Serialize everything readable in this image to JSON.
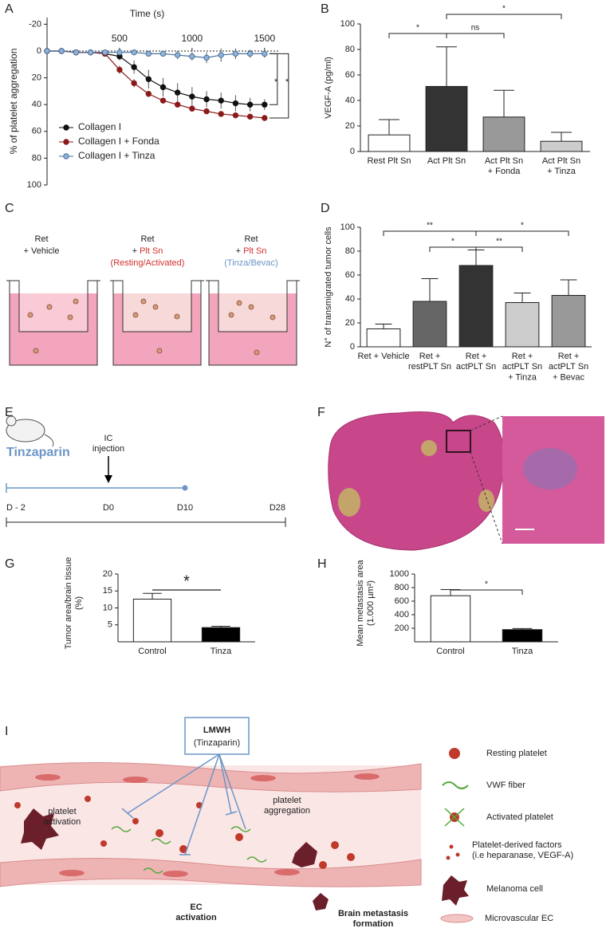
{
  "panel_labels": [
    "A",
    "B",
    "C",
    "D",
    "E",
    "F",
    "G",
    "H",
    "I"
  ],
  "chart_data": [
    {
      "type": "line",
      "x_label": "Time (s)",
      "y_label": "% of platelet aggregation",
      "x": [
        0,
        100,
        200,
        300,
        400,
        500,
        600,
        700,
        800,
        900,
        1000,
        1100,
        1200,
        1300,
        1400,
        1500
      ],
      "series": [
        {
          "name": "Collagen I",
          "color": "#111111",
          "values": [
            0,
            0,
            1,
            1,
            2,
            4,
            12,
            21,
            27,
            31,
            34,
            36,
            37,
            39,
            40,
            40
          ],
          "errors": [
            0,
            0,
            1,
            1,
            2,
            3,
            5,
            7,
            7,
            7,
            7,
            6,
            6,
            6,
            5,
            4
          ]
        },
        {
          "name": "Collagen I + Fonda",
          "color": "#8b1a1a",
          "values": [
            0,
            0,
            1,
            1,
            2,
            14,
            24,
            32,
            37,
            40,
            43,
            45,
            47,
            48,
            49,
            50
          ],
          "errors": [
            0,
            0,
            1,
            1,
            1,
            3,
            3,
            2,
            1,
            1,
            1,
            1,
            1,
            1,
            1,
            1
          ]
        },
        {
          "name": "Collagen I + Tinza",
          "color": "#8fb3d9",
          "values": [
            0,
            0,
            1,
            1,
            1,
            1,
            1,
            2,
            2,
            3,
            4,
            5,
            3,
            2,
            2,
            2
          ],
          "errors": [
            0,
            0,
            1,
            1,
            1,
            2,
            2,
            2,
            2,
            3,
            3,
            4,
            5,
            4,
            3,
            3
          ]
        }
      ],
      "xlim": [
        0,
        1600
      ],
      "xticks": [
        500,
        1000,
        1500
      ],
      "ylim": [
        -25,
        100
      ],
      "yticks": [
        -20,
        0,
        20,
        40,
        60,
        80,
        100
      ],
      "y_inverted": true,
      "x_axis_position": "top",
      "legend": "lower left",
      "annotations": [
        "*",
        "*"
      ]
    },
    {
      "type": "bar",
      "y_label": "VEGF-A (pg/ml)",
      "categories": [
        "Rest Plt Sn",
        "Act Plt Sn",
        "Act Plt Sn\n+ Fonda",
        "Act Plt Sn\n+ Tinza"
      ],
      "values": [
        13,
        51,
        27,
        8
      ],
      "errors": [
        12,
        31,
        21,
        7
      ],
      "colors": [
        "#ffffff",
        "#333333",
        "#999999",
        "#cccccc"
      ],
      "ylim": [
        0,
        100
      ],
      "yticks": [
        0,
        20,
        40,
        60,
        80,
        100
      ],
      "annotations": [
        "*",
        "ns",
        "*"
      ]
    },
    {
      "type": "bar",
      "y_label": "N° of transmigrated tumor cells",
      "categories": [
        "Ret + Vehicle",
        "Ret +\nrestPLT Sn",
        "Ret +\nactPLT Sn",
        "Ret +\nactPLT Sn\n+ Tinza",
        "Ret +\nactPLT Sn\n+ Bevac"
      ],
      "values": [
        15,
        38,
        68,
        37,
        43
      ],
      "errors": [
        4,
        19,
        13,
        8,
        13
      ],
      "colors": [
        "#ffffff",
        "#666666",
        "#333333",
        "#cccccc",
        "#999999"
      ],
      "ylim": [
        0,
        100
      ],
      "yticks": [
        0,
        20,
        40,
        60,
        80,
        100
      ],
      "annotations": [
        "**",
        "*",
        "**",
        "*"
      ]
    },
    {
      "type": "bar",
      "y_label": "Tumor area/brain tissue\n(%)",
      "categories": [
        "Control",
        "Tinza"
      ],
      "values": [
        12.6,
        4.2
      ],
      "errors": [
        1.7,
        0.4
      ],
      "colors": [
        "#ffffff",
        "#000000"
      ],
      "ylim": [
        0,
        20
      ],
      "yticks": [
        5,
        10,
        15,
        20
      ],
      "annotations": [
        "*"
      ]
    },
    {
      "type": "bar",
      "y_label": "Mean metastasis area\n(1.000 µm²)",
      "categories": [
        "Control",
        "Tinza"
      ],
      "values": [
        680,
        180
      ],
      "errors": [
        90,
        15
      ],
      "colors": [
        "#ffffff",
        "#000000"
      ],
      "ylim": [
        0,
        1000
      ],
      "yticks": [
        200,
        400,
        600,
        800,
        1000
      ],
      "annotations": [
        "*"
      ]
    }
  ],
  "panel_c": {
    "wells": [
      {
        "line1": "Ret",
        "line2": "+ Vehicle"
      },
      {
        "line1": "Ret",
        "line2_prefix": "+ ",
        "line2_colored": "Plt Sn",
        "line3": "(Resting/Activated)"
      },
      {
        "line1": "Ret",
        "line2_prefix": "+ ",
        "line2_colored": "Plt Sn",
        "line3": "(Tinza/Bevac)"
      }
    ]
  },
  "panel_e": {
    "drug": "Tinzaparin",
    "event": "IC\ninjection",
    "days": [
      "D - 2",
      "D0",
      "D10",
      "D28"
    ]
  },
  "panel_i": {
    "drug": "LMWH",
    "drug_detail": "(Tinzaparin)",
    "labels": [
      "platelet\nactivation",
      "platelet\naggregation",
      "EC\nactivation",
      "Brain metastasis\nformation"
    ],
    "legend": [
      "Resting platelet",
      "VWF fiber",
      "Activated platelet",
      "Platelet-derived factors\n(i.e heparanase, VEGF-A)",
      "Melanoma cell",
      "Microvascular EC"
    ]
  }
}
